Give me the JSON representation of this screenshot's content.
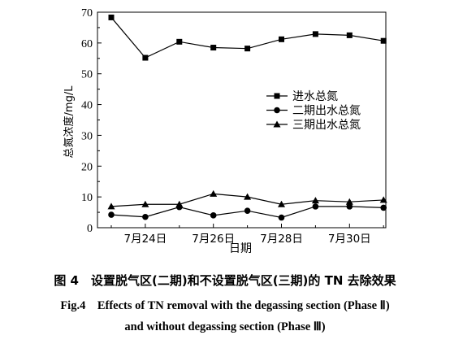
{
  "chart_data": {
    "type": "line",
    "xlabel": "日期",
    "ylabel": "总氮浓度/mg/L",
    "ylim": [
      0,
      70
    ],
    "yticks": [
      0,
      10,
      20,
      30,
      40,
      50,
      60,
      70
    ],
    "xticks": [
      "7月24日",
      "7月26日",
      "7月28日",
      "7月30日"
    ],
    "x": [
      "7月23日",
      "7月24日",
      "7月25日",
      "7月26日",
      "7月27日",
      "7月28日",
      "7月29日",
      "7月30日",
      "7月31日"
    ],
    "legend_position": "right",
    "grid": false,
    "series": [
      {
        "name": "进水总氮",
        "marker": "square",
        "values": [
          68.3,
          55.2,
          60.4,
          58.5,
          58.2,
          61.2,
          62.9,
          62.5,
          60.7
        ]
      },
      {
        "name": "二期出水总氮",
        "marker": "circle",
        "values": [
          4.2,
          3.5,
          6.7,
          4.0,
          5.5,
          3.3,
          6.9,
          6.9,
          6.5
        ]
      },
      {
        "name": "三期出水总氮",
        "marker": "triangle",
        "values": [
          6.9,
          7.6,
          7.6,
          11.0,
          10.0,
          7.6,
          8.8,
          8.4,
          9.0
        ]
      }
    ]
  },
  "caption": {
    "cn": "图 4　设置脱气区(二期)和不设置脱气区(三期)的 TN 去除效果",
    "en_line1": "Fig.4　Effects of TN removal with the degassing section (Phase Ⅱ)",
    "en_line2": "and without degassing section (Phase Ⅲ)"
  }
}
